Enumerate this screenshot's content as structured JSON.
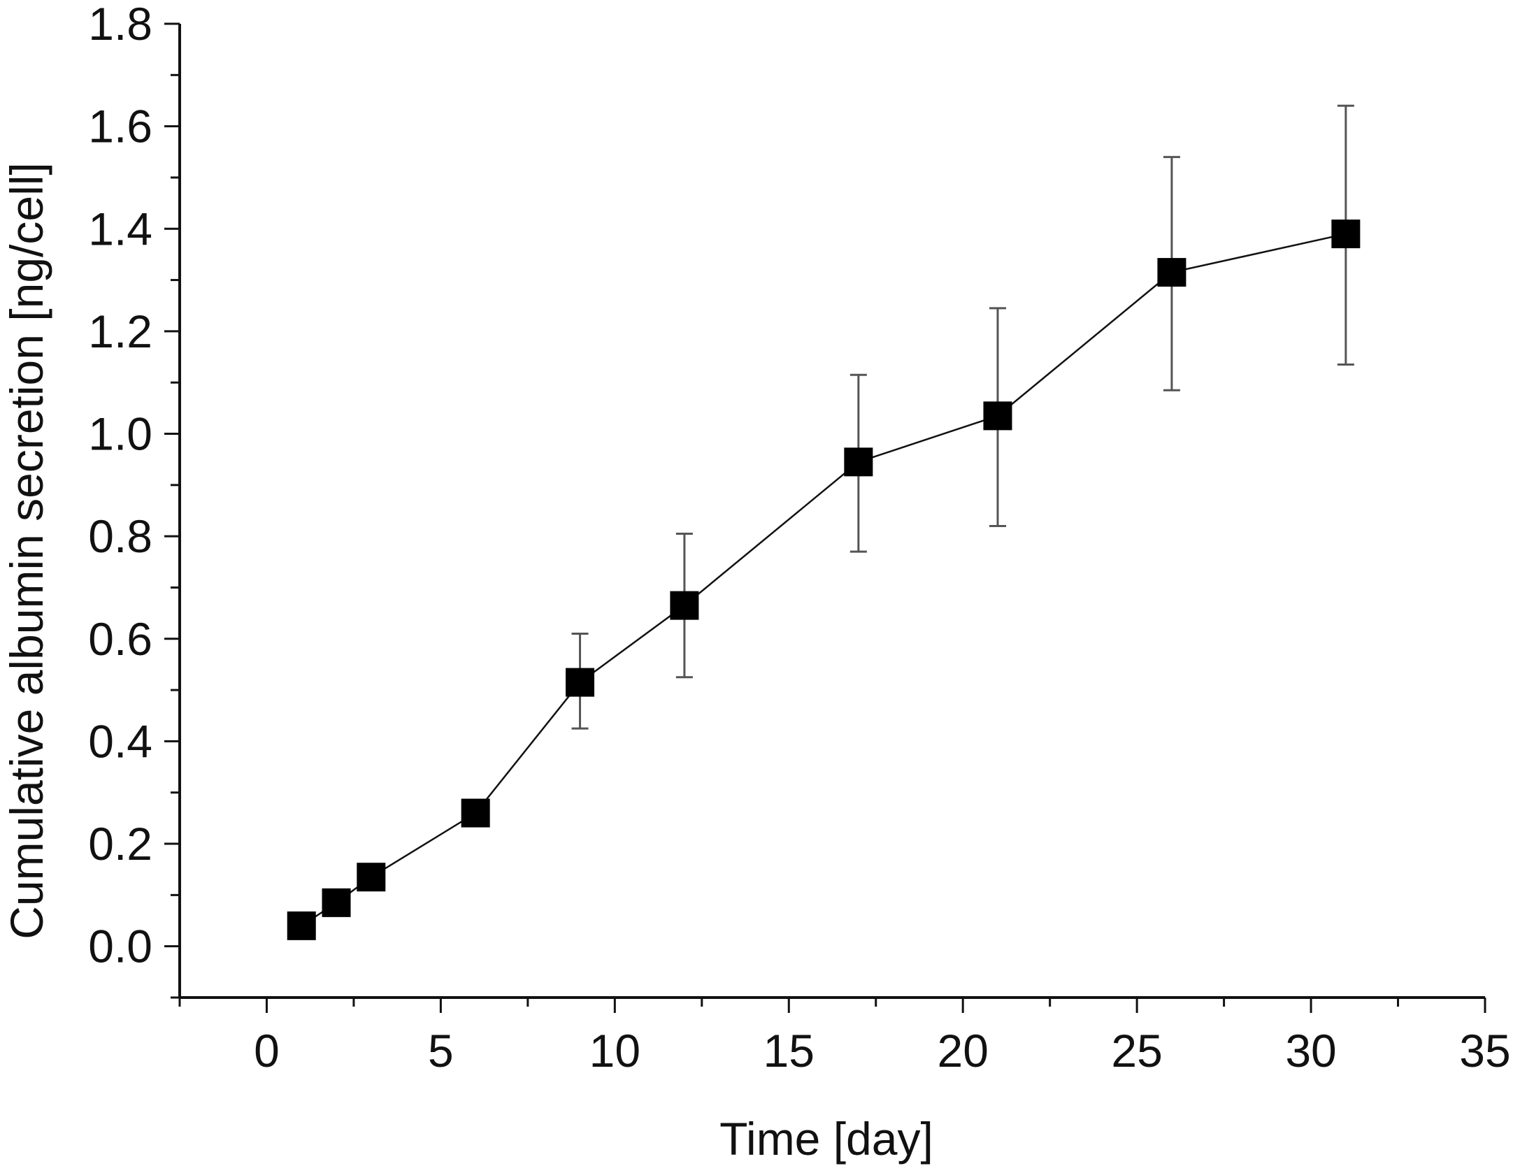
{
  "chart_data": {
    "type": "line",
    "title": "",
    "xlabel": "Time [day]",
    "ylabel": "Cumulative albumin secretion [ng/cell]",
    "xlim": [
      -2.5,
      35
    ],
    "ylim": [
      -0.1,
      1.8
    ],
    "xticks": [
      0,
      5,
      10,
      15,
      20,
      25,
      30,
      35
    ],
    "xtick_labels": [
      "0",
      "5",
      "10",
      "15",
      "20",
      "25",
      "30",
      "35"
    ],
    "xminor_step": 2.5,
    "yticks": [
      0.0,
      0.2,
      0.4,
      0.6,
      0.8,
      1.0,
      1.2,
      1.4,
      1.6,
      1.8
    ],
    "ytick_labels": [
      "0.0",
      "0.2",
      "0.4",
      "0.6",
      "0.8",
      "1.0",
      "1.2",
      "1.4",
      "1.6",
      "1.8"
    ],
    "yminor_step": 0.1,
    "grid": false,
    "legend": "none",
    "colors": {
      "line": "#111111",
      "marker": "#000000",
      "errorbar": "#555555",
      "axis": "#111111"
    },
    "series": [
      {
        "name": "Cumulative albumin secretion",
        "marker": "square",
        "x": [
          1,
          2,
          3,
          6,
          9,
          12,
          17,
          21,
          26,
          31
        ],
        "y": [
          0.04,
          0.085,
          0.135,
          0.26,
          0.515,
          0.665,
          0.945,
          1.035,
          1.315,
          1.39
        ],
        "err_low": [
          0.04,
          0.085,
          0.135,
          0.235,
          0.425,
          0.525,
          0.77,
          0.82,
          1.085,
          1.135
        ],
        "err_high": [
          0.04,
          0.085,
          0.135,
          0.285,
          0.61,
          0.805,
          1.115,
          1.245,
          1.54,
          1.64
        ]
      }
    ]
  }
}
